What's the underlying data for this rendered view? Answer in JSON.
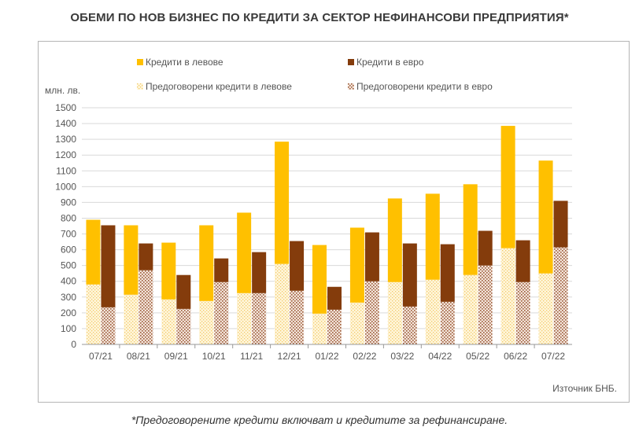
{
  "title": "ОБЕМИ ПО НОВ БИЗНЕС ПО КРЕДИТИ ЗА СЕКТОР НЕФИНАНСОВИ ПРЕДПРИЯТИЯ*",
  "footnote": "*Предоговорените кредити включват и кредитите за рефинансиране.",
  "source": "Източник БНБ.",
  "colors": {
    "bgn": "#FFC000",
    "eur": "#843C0C",
    "bgn_renegotiated_pattern": "#F6D78C",
    "eur_renegotiated_pattern": "#B07A5E",
    "grid": "#d9d9d9",
    "axis": "#999999"
  },
  "chart_data": {
    "type": "bar",
    "stacked_groups": true,
    "ylabel": "млн. лв.",
    "ylim": [
      0,
      1500
    ],
    "yticks": [
      0,
      100,
      200,
      300,
      400,
      500,
      600,
      700,
      800,
      900,
      1000,
      1100,
      1200,
      1300,
      1400,
      1500
    ],
    "grid": true,
    "legend_position": "top",
    "categories": [
      "07/21",
      "08/21",
      "09/21",
      "10/21",
      "11/21",
      "12/21",
      "01/22",
      "02/22",
      "03/22",
      "04/22",
      "05/22",
      "06/22",
      "07/22"
    ],
    "series": [
      {
        "name": "Кредити в левове",
        "key": "bgn",
        "stack": "bgn",
        "pattern": false,
        "values": [
          410,
          440,
          360,
          480,
          510,
          775,
          435,
          475,
          530,
          545,
          575,
          775,
          715
        ]
      },
      {
        "name": "Кредити в евро",
        "key": "eur",
        "stack": "eur",
        "pattern": false,
        "values": [
          520,
          170,
          215,
          150,
          260,
          315,
          145,
          310,
          400,
          365,
          220,
          265,
          295
        ]
      },
      {
        "name": "Предоговорени кредити в левове",
        "key": "bgn_renegotiated",
        "stack": "bgn",
        "pattern": true,
        "values": [
          380,
          315,
          285,
          275,
          325,
          510,
          195,
          265,
          395,
          410,
          440,
          610,
          450
        ]
      },
      {
        "name": "Предоговорени кредити в евро",
        "key": "eur_renegotiated",
        "stack": "eur",
        "pattern": true,
        "values": [
          235,
          470,
          225,
          395,
          325,
          340,
          220,
          400,
          240,
          270,
          500,
          395,
          615
        ]
      }
    ]
  }
}
